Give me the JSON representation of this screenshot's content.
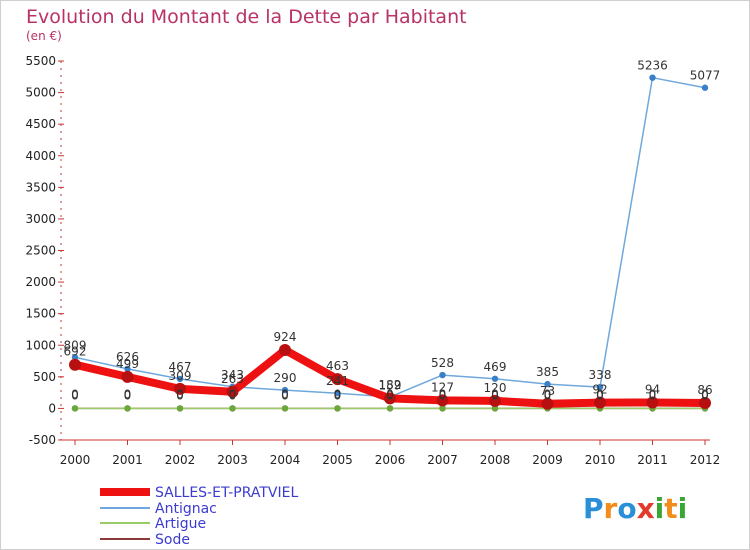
{
  "header": {
    "title": "Evolution du Montant de la Dette par Habitant",
    "subtitle": "(en €)"
  },
  "brand": {
    "text": "Proxiti",
    "letters": [
      {
        "ch": "P",
        "color": "#2b8fd8"
      },
      {
        "ch": "r",
        "color": "#f28c1b"
      },
      {
        "ch": "o",
        "color": "#2b8fd8"
      },
      {
        "ch": "x",
        "color": "#e33a2c"
      },
      {
        "ch": "i",
        "color": "#3aa635"
      },
      {
        "ch": "t",
        "color": "#f28c1b"
      },
      {
        "ch": "i",
        "color": "#3aa635"
      }
    ]
  },
  "chart_data": {
    "type": "line",
    "x": [
      "2000",
      "2001",
      "2002",
      "2003",
      "2004",
      "2005",
      "2006",
      "2007",
      "2008",
      "2009",
      "2010",
      "2011",
      "2012"
    ],
    "ylim": [
      -500,
      5500
    ],
    "yticks": [
      -500,
      0,
      500,
      1000,
      1500,
      2000,
      2500,
      3000,
      3500,
      4000,
      4500,
      5000,
      5500
    ],
    "grid": false,
    "legend_position": "bottom-left",
    "series": [
      {
        "name": "SALLES-ET-PRATVIEL",
        "color": "#ee1111",
        "width": 8,
        "values": [
          692,
          499,
          309,
          263,
          924,
          463,
          159,
          127,
          120,
          73,
          92,
          94,
          86
        ],
        "labels": [
          "692",
          "499",
          "309",
          "263",
          "924",
          "463",
          "159",
          "127",
          "120",
          "73",
          "92",
          "94",
          "86"
        ]
      },
      {
        "name": "Antignac",
        "color": "#6fa8dc",
        "width": 1.5,
        "values": [
          809,
          626,
          467,
          343,
          290,
          241,
          182,
          528,
          469,
          385,
          338,
          5236,
          5077
        ],
        "labels": [
          "809",
          "626",
          "467",
          "343",
          "290",
          "241",
          "182",
          "528",
          "469",
          "385",
          "338",
          "5236",
          "5077"
        ]
      },
      {
        "name": "Artigue",
        "color": "#99cc66",
        "width": 1.5,
        "values": [
          0,
          0,
          0,
          0,
          0,
          0,
          0,
          0,
          0,
          0,
          0,
          0,
          0
        ],
        "labels": [
          "0",
          "0",
          "0",
          "0",
          "0",
          "0",
          "0",
          "0",
          "0",
          "0",
          "0",
          "0",
          "0"
        ]
      },
      {
        "name": "Sode",
        "color": "#8b3a3a",
        "width": 1.5,
        "values": [
          0,
          0,
          0,
          0,
          0,
          0,
          0,
          0,
          0,
          0,
          0,
          0,
          0
        ],
        "labels": [
          "0",
          "0",
          "0",
          "0",
          "0",
          "0",
          "0",
          "0",
          "0",
          "0",
          "0",
          "0",
          "0"
        ]
      }
    ]
  }
}
